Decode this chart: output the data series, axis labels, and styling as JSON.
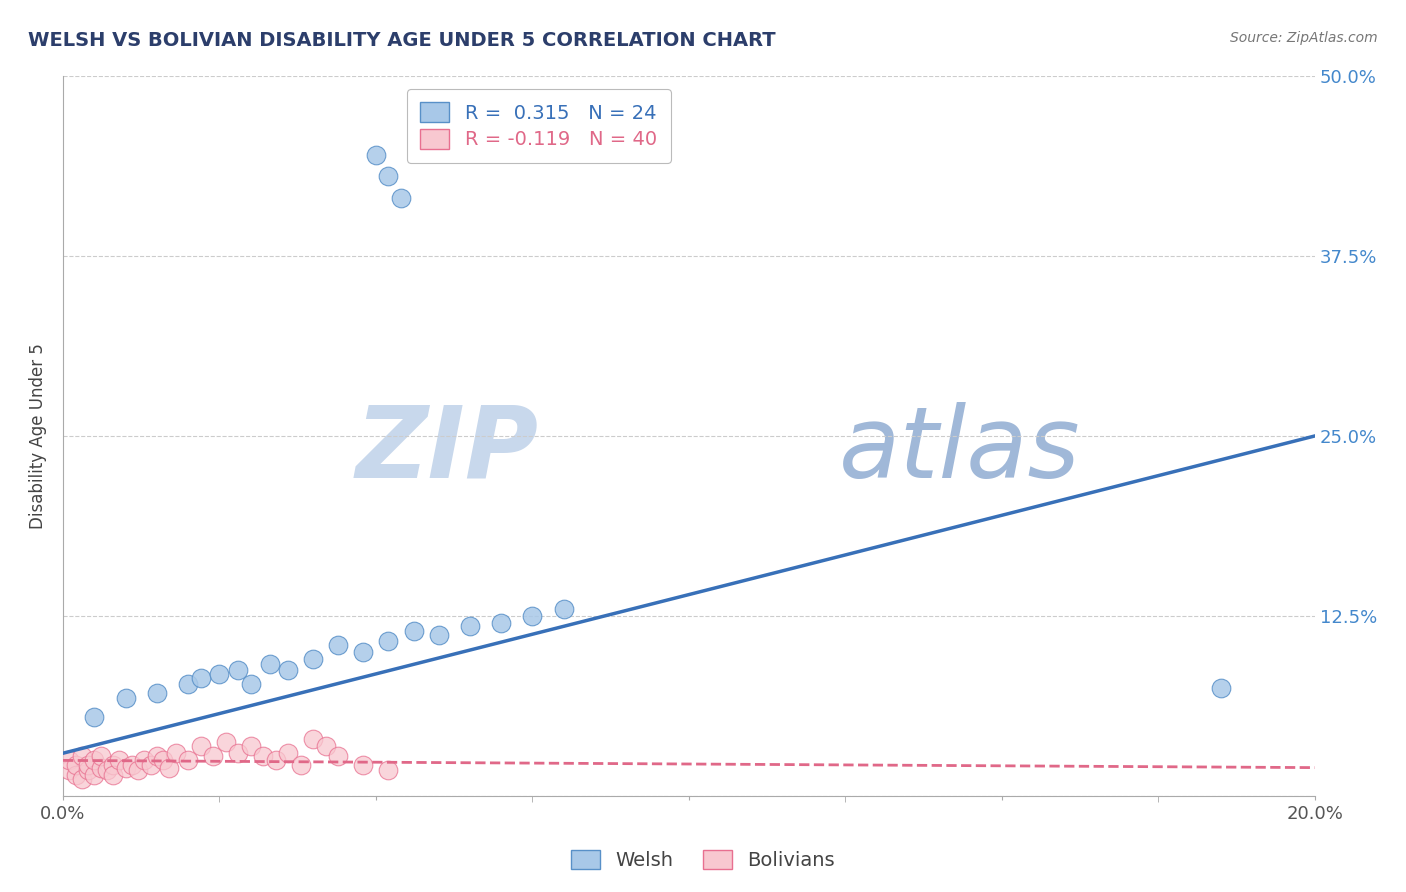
{
  "title": "WELSH VS BOLIVIAN DISABILITY AGE UNDER 5 CORRELATION CHART",
  "source": "Source: ZipAtlas.com",
  "ylabel": "Disability Age Under 5",
  "xlim": [
    0.0,
    0.2
  ],
  "ylim": [
    0.0,
    0.5
  ],
  "yticks": [
    0.0,
    0.125,
    0.25,
    0.375,
    0.5
  ],
  "ytick_labels": [
    "",
    "12.5%",
    "25.0%",
    "37.5%",
    "50.0%"
  ],
  "xticks": [
    0.0,
    0.05,
    0.1,
    0.15,
    0.2
  ],
  "xtick_labels": [
    "0.0%",
    "",
    "",
    "",
    "20.0%"
  ],
  "welsh_R": 0.315,
  "welsh_N": 24,
  "bolivian_R": -0.119,
  "bolivian_N": 40,
  "welsh_color": "#a8c8e8",
  "bolivian_color": "#f8c8d0",
  "welsh_edge_color": "#5890c8",
  "bolivian_edge_color": "#e87090",
  "welsh_line_color": "#3870b8",
  "bolivian_line_color": "#e06888",
  "title_color": "#2c3e6b",
  "source_color": "#777777",
  "watermark_color_zip": "#c8d8ec",
  "watermark_color_atlas": "#a0b8d8",
  "background_color": "#ffffff",
  "grid_color": "#cccccc",
  "welsh_x": [
    0.005,
    0.01,
    0.015,
    0.02,
    0.022,
    0.025,
    0.028,
    0.03,
    0.033,
    0.036,
    0.04,
    0.044,
    0.048,
    0.052,
    0.056,
    0.06,
    0.065,
    0.07,
    0.075,
    0.08,
    0.05,
    0.052,
    0.054,
    0.185
  ],
  "welsh_y": [
    0.055,
    0.068,
    0.072,
    0.078,
    0.082,
    0.085,
    0.088,
    0.078,
    0.092,
    0.088,
    0.095,
    0.105,
    0.1,
    0.108,
    0.115,
    0.112,
    0.118,
    0.12,
    0.125,
    0.13,
    0.445,
    0.43,
    0.415,
    0.075
  ],
  "bolivian_x": [
    0.001,
    0.001,
    0.002,
    0.002,
    0.003,
    0.003,
    0.004,
    0.004,
    0.005,
    0.005,
    0.006,
    0.006,
    0.007,
    0.008,
    0.008,
    0.009,
    0.01,
    0.011,
    0.012,
    0.013,
    0.014,
    0.015,
    0.016,
    0.017,
    0.018,
    0.02,
    0.022,
    0.024,
    0.026,
    0.028,
    0.03,
    0.032,
    0.034,
    0.036,
    0.038,
    0.04,
    0.042,
    0.044,
    0.048,
    0.052
  ],
  "bolivian_y": [
    0.018,
    0.025,
    0.015,
    0.022,
    0.012,
    0.028,
    0.018,
    0.022,
    0.015,
    0.025,
    0.02,
    0.028,
    0.018,
    0.022,
    0.015,
    0.025,
    0.02,
    0.022,
    0.018,
    0.025,
    0.022,
    0.028,
    0.025,
    0.02,
    0.03,
    0.025,
    0.035,
    0.028,
    0.038,
    0.03,
    0.035,
    0.028,
    0.025,
    0.03,
    0.022,
    0.04,
    0.035,
    0.028,
    0.022,
    0.018
  ],
  "welsh_line_x0": 0.0,
  "welsh_line_y0": 0.03,
  "welsh_line_x1": 0.2,
  "welsh_line_y1": 0.25,
  "bolivian_line_x0": 0.0,
  "bolivian_line_y0": 0.025,
  "bolivian_line_x1": 0.2,
  "bolivian_line_y1": 0.02
}
